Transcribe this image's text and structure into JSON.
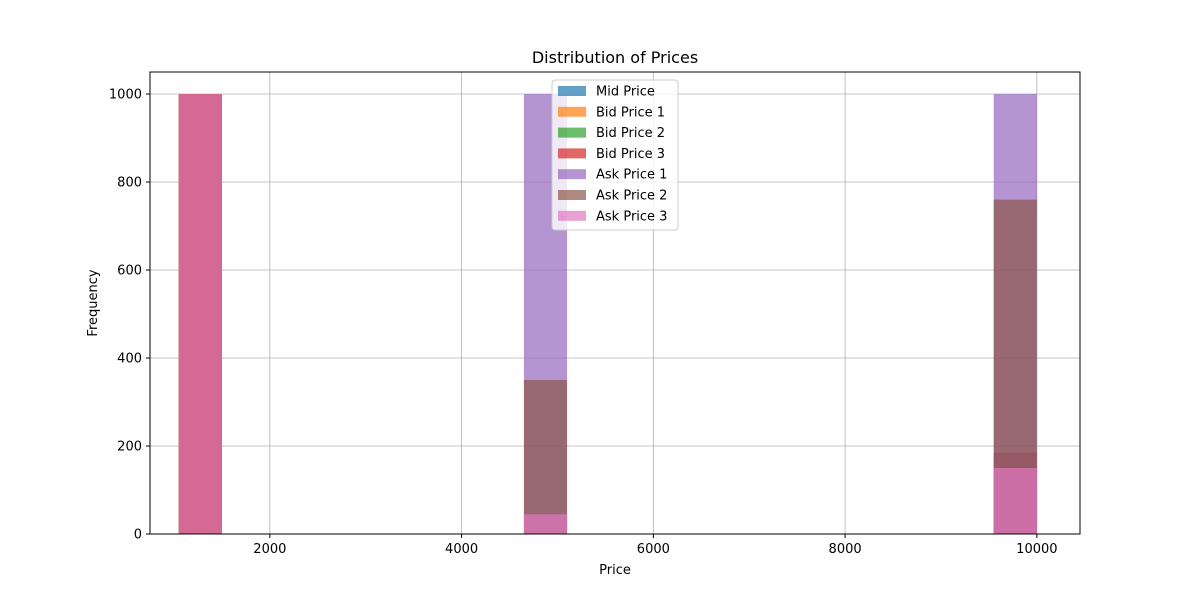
{
  "chart_data": {
    "type": "bar",
    "title": "Distribution of Prices",
    "xlabel": "Price",
    "ylabel": "Frequency",
    "xlim": [
      750,
      10450
    ],
    "ylim": [
      0,
      1050
    ],
    "xticks": [
      2000,
      4000,
      6000,
      8000,
      10000
    ],
    "yticks": [
      0,
      200,
      400,
      600,
      800,
      1000
    ],
    "grid": true,
    "legend_position": "top-center",
    "bin_width": 450,
    "series": [
      {
        "name": "Mid Price",
        "color": "#1f77b4",
        "bins": [
          {
            "x0": 1050,
            "count": 1000
          },
          {
            "x0": 4650,
            "count": 0
          },
          {
            "x0": 9550,
            "count": 0
          }
        ]
      },
      {
        "name": "Bid Price 1",
        "color": "#ff7f0e",
        "bins": [
          {
            "x0": 1050,
            "count": 1000
          },
          {
            "x0": 4650,
            "count": 0
          },
          {
            "x0": 9550,
            "count": 0
          }
        ]
      },
      {
        "name": "Bid Price 2",
        "color": "#2ca02c",
        "bins": [
          {
            "x0": 1050,
            "count": 1000
          },
          {
            "x0": 4650,
            "count": 0
          },
          {
            "x0": 9550,
            "count": 0
          }
        ]
      },
      {
        "name": "Bid Price 3",
        "color": "#d62728",
        "bins": [
          {
            "x0": 1050,
            "count": 1000
          },
          {
            "x0": 4650,
            "count": 0
          },
          {
            "x0": 9550,
            "count": 185
          }
        ]
      },
      {
        "name": "Ask Price 1",
        "color": "#9467bd",
        "bins": [
          {
            "x0": 1050,
            "count": 0
          },
          {
            "x0": 4650,
            "count": 1000
          },
          {
            "x0": 9550,
            "count": 1000
          }
        ]
      },
      {
        "name": "Ask Price 2",
        "color": "#8c564b",
        "bins": [
          {
            "x0": 1050,
            "count": 0
          },
          {
            "x0": 4650,
            "count": 350
          },
          {
            "x0": 9550,
            "count": 760
          }
        ]
      },
      {
        "name": "Ask Price 3",
        "color": "#e377c2",
        "bins": [
          {
            "x0": 1050,
            "count": 1000
          },
          {
            "x0": 4650,
            "count": 45
          },
          {
            "x0": 9550,
            "count": 150
          }
        ]
      }
    ]
  }
}
